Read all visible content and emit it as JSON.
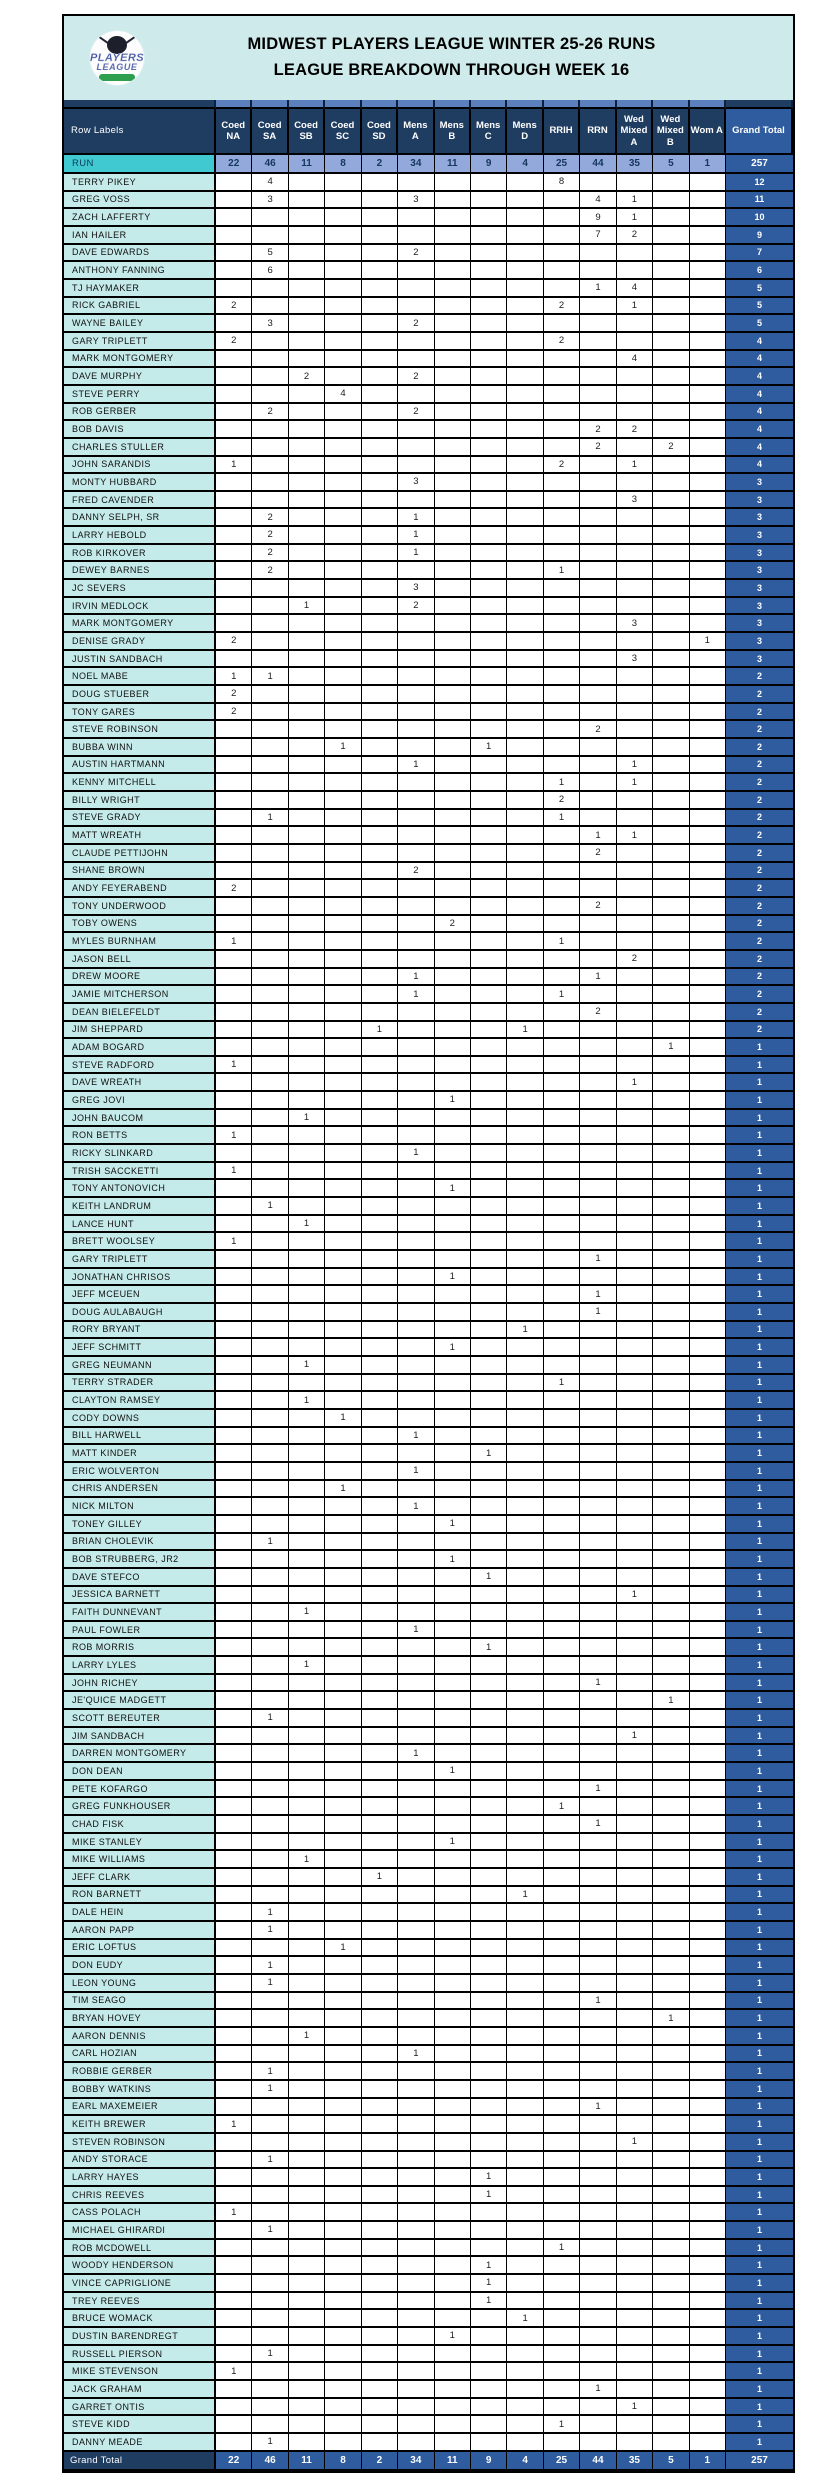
{
  "title": {
    "line1": "MIDWEST PLAYERS LEAGUE WINTER 25-26 RUNS",
    "line2": "LEAGUE BREAKDOWN THROUGH WEEK 16"
  },
  "logo": {
    "text_main": "PLAYERS",
    "text_sub": "LEAGUE"
  },
  "colors": {
    "title_band": "#cfeaea",
    "header_navy": "#1f3c61",
    "grand_total_blue": "#2e5c9e",
    "subtotal_periwinkle": "#93a9db",
    "run_label_turquoise": "#41c9d2",
    "player_label_cyan": "#c5eaea"
  },
  "table": {
    "row_labels_header": "Row Labels",
    "grand_total_header": "Grand Total",
    "columns": [
      "Coed NA",
      "Coed SA",
      "Coed SB",
      "Coed SC",
      "Coed SD",
      "Mens A",
      "Mens B",
      "Mens C",
      "Mens D",
      "RRIH",
      "RRN",
      "Wed Mixed A",
      "Wed Mixed B",
      "Wom A"
    ],
    "run_row": {
      "label": "RUN",
      "values": [
        22,
        46,
        11,
        8,
        2,
        34,
        11,
        9,
        4,
        25,
        44,
        35,
        5,
        1
      ],
      "total": 257
    },
    "rows": [
      {
        "name": "TERRY PIKEY",
        "cells": {
          "1": 4,
          "9": 8
        },
        "total": 12
      },
      {
        "name": "GREG VOSS",
        "cells": {
          "1": 3,
          "5": 3,
          "10": 4,
          "11": 1
        },
        "total": 11
      },
      {
        "name": "ZACH LAFFERTY",
        "cells": {
          "10": 9,
          "11": 1
        },
        "total": 10
      },
      {
        "name": "IAN HAILER",
        "cells": {
          "10": 7,
          "11": 2
        },
        "total": 9
      },
      {
        "name": "DAVE EDWARDS",
        "cells": {
          "1": 5,
          "5": 2
        },
        "total": 7
      },
      {
        "name": "ANTHONY FANNING",
        "cells": {
          "1": 6
        },
        "total": 6
      },
      {
        "name": "TJ HAYMAKER",
        "cells": {
          "10": 1,
          "11": 4
        },
        "total": 5
      },
      {
        "name": "RICK GABRIEL",
        "cells": {
          "0": 2,
          "9": 2,
          "11": 1
        },
        "total": 5
      },
      {
        "name": "WAYNE BAILEY",
        "cells": {
          "1": 3,
          "5": 2
        },
        "total": 5
      },
      {
        "name": "GARY TRIPLETT",
        "cells": {
          "0": 2,
          "9": 2
        },
        "total": 4
      },
      {
        "name": "MARK MONTGOMERY",
        "cells": {
          "11": 4
        },
        "total": 4
      },
      {
        "name": "DAVE MURPHY",
        "cells": {
          "2": 2,
          "5": 2
        },
        "total": 4
      },
      {
        "name": "STEVE PERRY",
        "cells": {
          "3": 4
        },
        "total": 4
      },
      {
        "name": "ROB GERBER",
        "cells": {
          "1": 2,
          "5": 2
        },
        "total": 4
      },
      {
        "name": "BOB DAVIS",
        "cells": {
          "10": 2,
          "11": 2
        },
        "total": 4
      },
      {
        "name": "CHARLES STULLER",
        "cells": {
          "10": 2,
          "12": 2
        },
        "total": 4
      },
      {
        "name": "JOHN SARANDIS",
        "cells": {
          "0": 1,
          "9": 2,
          "11": 1
        },
        "total": 4
      },
      {
        "name": "MONTY HUBBARD",
        "cells": {
          "5": 3
        },
        "total": 3
      },
      {
        "name": "FRED CAVENDER",
        "cells": {
          "11": 3
        },
        "total": 3
      },
      {
        "name": "DANNY SELPH, SR",
        "cells": {
          "1": 2,
          "5": 1
        },
        "total": 3
      },
      {
        "name": "LARRY HEBOLD",
        "cells": {
          "1": 2,
          "5": 1
        },
        "total": 3
      },
      {
        "name": "ROB KIRKOVER",
        "cells": {
          "1": 2,
          "5": 1
        },
        "total": 3
      },
      {
        "name": "DEWEY BARNES",
        "cells": {
          "1": 2,
          "9": 1
        },
        "total": 3
      },
      {
        "name": "JC SEVERS",
        "cells": {
          "5": 3
        },
        "total": 3
      },
      {
        "name": "IRVIN MEDLOCK",
        "cells": {
          "2": 1,
          "5": 2
        },
        "total": 3
      },
      {
        "name": "MARK MONTGOMERY",
        "cells": {
          "11": 3
        },
        "total": 3
      },
      {
        "name": "DENISE GRADY",
        "cells": {
          "0": 2,
          "13": 1
        },
        "total": 3
      },
      {
        "name": "JUSTIN SANDBACH",
        "cells": {
          "11": 3
        },
        "total": 3
      },
      {
        "name": "NOEL MABE",
        "cells": {
          "0": 1,
          "1": 1
        },
        "total": 2
      },
      {
        "name": "DOUG STUEBER",
        "cells": {
          "0": 2
        },
        "total": 2
      },
      {
        "name": "TONY GARES",
        "cells": {
          "0": 2
        },
        "total": 2
      },
      {
        "name": "STEVE ROBINSON",
        "cells": {
          "10": 2
        },
        "total": 2
      },
      {
        "name": "BUBBA WINN",
        "cells": {
          "3": 1,
          "7": 1
        },
        "total": 2
      },
      {
        "name": "AUSTIN HARTMANN",
        "cells": {
          "5": 1,
          "11": 1
        },
        "total": 2
      },
      {
        "name": "KENNY MITCHELL",
        "cells": {
          "9": 1,
          "11": 1
        },
        "total": 2
      },
      {
        "name": "BILLY WRIGHT",
        "cells": {
          "9": 2
        },
        "total": 2
      },
      {
        "name": "STEVE GRADY",
        "cells": {
          "1": 1,
          "9": 1
        },
        "total": 2
      },
      {
        "name": "MATT WREATH",
        "cells": {
          "10": 1,
          "11": 1
        },
        "total": 2
      },
      {
        "name": "CLAUDE PETTIJOHN",
        "cells": {
          "10": 2
        },
        "total": 2
      },
      {
        "name": "SHANE BROWN",
        "cells": {
          "5": 2
        },
        "total": 2
      },
      {
        "name": "ANDY FEYERABEND",
        "cells": {
          "0": 2
        },
        "total": 2
      },
      {
        "name": "TONY UNDERWOOD",
        "cells": {
          "10": 2
        },
        "total": 2
      },
      {
        "name": "TOBY OWENS",
        "cells": {
          "6": 2
        },
        "total": 2
      },
      {
        "name": "MYLES BURNHAM",
        "cells": {
          "0": 1,
          "9": 1
        },
        "total": 2
      },
      {
        "name": "JASON BELL",
        "cells": {
          "11": 2
        },
        "total": 2
      },
      {
        "name": "DREW MOORE",
        "cells": {
          "5": 1,
          "10": 1
        },
        "total": 2
      },
      {
        "name": "JAMIE MITCHERSON",
        "cells": {
          "5": 1,
          "9": 1
        },
        "total": 2
      },
      {
        "name": "DEAN BIELEFELDT",
        "cells": {
          "10": 2
        },
        "total": 2
      },
      {
        "name": "JIM SHEPPARD",
        "cells": {
          "4": 1,
          "8": 1
        },
        "total": 2
      },
      {
        "name": "ADAM BOGARD",
        "cells": {
          "12": 1
        },
        "total": 1
      },
      {
        "name": "STEVE RADFORD",
        "cells": {
          "0": 1
        },
        "total": 1
      },
      {
        "name": "DAVE WREATH",
        "cells": {
          "11": 1
        },
        "total": 1
      },
      {
        "name": "GREG JOVI",
        "cells": {
          "6": 1
        },
        "total": 1
      },
      {
        "name": "JOHN BAUCOM",
        "cells": {
          "2": 1
        },
        "total": 1
      },
      {
        "name": "RON BETTS",
        "cells": {
          "0": 1
        },
        "total": 1
      },
      {
        "name": "RICKY SLINKARD",
        "cells": {
          "5": 1
        },
        "total": 1
      },
      {
        "name": "TRISH SACCKETTI",
        "cells": {
          "0": 1
        },
        "total": 1
      },
      {
        "name": "TONY ANTONOVICH",
        "cells": {
          "6": 1
        },
        "total": 1
      },
      {
        "name": "KEITH LANDRUM",
        "cells": {
          "1": 1
        },
        "total": 1
      },
      {
        "name": "LANCE HUNT",
        "cells": {
          "2": 1
        },
        "total": 1
      },
      {
        "name": "BRETT WOOLSEY",
        "cells": {
          "0": 1
        },
        "total": 1
      },
      {
        "name": "GARY TRIPLETT",
        "cells": {
          "10": 1
        },
        "total": 1
      },
      {
        "name": "JONATHAN CHRISOS",
        "cells": {
          "6": 1
        },
        "total": 1
      },
      {
        "name": "JEFF MCEUEN",
        "cells": {
          "10": 1
        },
        "total": 1
      },
      {
        "name": "DOUG AULABAUGH",
        "cells": {
          "10": 1
        },
        "total": 1
      },
      {
        "name": "RORY BRYANT",
        "cells": {
          "8": 1
        },
        "total": 1
      },
      {
        "name": "JEFF SCHMITT",
        "cells": {
          "6": 1
        },
        "total": 1
      },
      {
        "name": "GREG NEUMANN",
        "cells": {
          "2": 1
        },
        "total": 1
      },
      {
        "name": "TERRY STRADER",
        "cells": {
          "9": 1
        },
        "total": 1
      },
      {
        "name": "CLAYTON RAMSEY",
        "cells": {
          "2": 1
        },
        "total": 1
      },
      {
        "name": "CODY DOWNS",
        "cells": {
          "3": 1
        },
        "total": 1
      },
      {
        "name": "BILL HARWELL",
        "cells": {
          "5": 1
        },
        "total": 1
      },
      {
        "name": "MATT KINDER",
        "cells": {
          "7": 1
        },
        "total": 1
      },
      {
        "name": "ERIC WOLVERTON",
        "cells": {
          "5": 1
        },
        "total": 1
      },
      {
        "name": "CHRIS ANDERSEN",
        "cells": {
          "3": 1
        },
        "total": 1
      },
      {
        "name": "NICK MILTON",
        "cells": {
          "5": 1
        },
        "total": 1
      },
      {
        "name": "TONEY GILLEY",
        "cells": {
          "6": 1
        },
        "total": 1
      },
      {
        "name": "BRIAN CHOLEVIK",
        "cells": {
          "1": 1
        },
        "total": 1
      },
      {
        "name": "BOB STRUBBERG, JR2",
        "cells": {
          "6": 1
        },
        "total": 1
      },
      {
        "name": "DAVE STEFCO",
        "cells": {
          "7": 1
        },
        "total": 1
      },
      {
        "name": "JESSICA BARNETT",
        "cells": {
          "11": 1
        },
        "total": 1
      },
      {
        "name": "FAITH DUNNEVANT",
        "cells": {
          "2": 1
        },
        "total": 1
      },
      {
        "name": "PAUL FOWLER",
        "cells": {
          "5": 1
        },
        "total": 1
      },
      {
        "name": "ROB MORRIS",
        "cells": {
          "7": 1
        },
        "total": 1
      },
      {
        "name": "LARRY LYLES",
        "cells": {
          "2": 1
        },
        "total": 1
      },
      {
        "name": "JOHN RICHEY",
        "cells": {
          "10": 1
        },
        "total": 1
      },
      {
        "name": "JE'QUICE MADGETT",
        "cells": {
          "12": 1
        },
        "total": 1
      },
      {
        "name": "SCOTT BEREUTER",
        "cells": {
          "1": 1
        },
        "total": 1
      },
      {
        "name": "JIM SANDBACH",
        "cells": {
          "11": 1
        },
        "total": 1
      },
      {
        "name": "DARREN MONTGOMERY",
        "cells": {
          "5": 1
        },
        "total": 1
      },
      {
        "name": "DON DEAN",
        "cells": {
          "6": 1
        },
        "total": 1
      },
      {
        "name": "PETE KOFARGO",
        "cells": {
          "10": 1
        },
        "total": 1
      },
      {
        "name": "GREG FUNKHOUSER",
        "cells": {
          "9": 1
        },
        "total": 1
      },
      {
        "name": "CHAD FISK",
        "cells": {
          "10": 1
        },
        "total": 1
      },
      {
        "name": "MIKE STANLEY",
        "cells": {
          "6": 1
        },
        "total": 1
      },
      {
        "name": "MIKE WILLIAMS",
        "cells": {
          "2": 1
        },
        "total": 1
      },
      {
        "name": "JEFF CLARK",
        "cells": {
          "4": 1
        },
        "total": 1
      },
      {
        "name": "RON BARNETT",
        "cells": {
          "8": 1
        },
        "total": 1
      },
      {
        "name": "DALE HEIN",
        "cells": {
          "1": 1
        },
        "total": 1
      },
      {
        "name": "AARON PAPP",
        "cells": {
          "1": 1
        },
        "total": 1
      },
      {
        "name": "ERIC LOFTUS",
        "cells": {
          "3": 1
        },
        "total": 1
      },
      {
        "name": "DON EUDY",
        "cells": {
          "1": 1
        },
        "total": 1
      },
      {
        "name": "LEON YOUNG",
        "cells": {
          "1": 1
        },
        "total": 1
      },
      {
        "name": "TIM SEAGO",
        "cells": {
          "10": 1
        },
        "total": 1
      },
      {
        "name": "BRYAN HOVEY",
        "cells": {
          "12": 1
        },
        "total": 1
      },
      {
        "name": "AARON DENNIS",
        "cells": {
          "2": 1
        },
        "total": 1
      },
      {
        "name": "CARL HOZIAN",
        "cells": {
          "5": 1
        },
        "total": 1
      },
      {
        "name": "ROBBIE GERBER",
        "cells": {
          "1": 1
        },
        "total": 1
      },
      {
        "name": "BOBBY WATKINS",
        "cells": {
          "1": 1
        },
        "total": 1
      },
      {
        "name": "EARL MAXEMEIER",
        "cells": {
          "10": 1
        },
        "total": 1
      },
      {
        "name": "KEITH BREWER",
        "cells": {
          "0": 1
        },
        "total": 1
      },
      {
        "name": "STEVEN ROBINSON",
        "cells": {
          "11": 1
        },
        "total": 1
      },
      {
        "name": "ANDY STORACE",
        "cells": {
          "1": 1
        },
        "total": 1
      },
      {
        "name": "LARRY HAYES",
        "cells": {
          "7": 1
        },
        "total": 1
      },
      {
        "name": "CHRIS REEVES",
        "cells": {
          "7": 1
        },
        "total": 1
      },
      {
        "name": "CASS POLACH",
        "cells": {
          "0": 1
        },
        "total": 1
      },
      {
        "name": "MICHAEL GHIRARDI",
        "cells": {
          "1": 1
        },
        "total": 1
      },
      {
        "name": "ROB MCDOWELL",
        "cells": {
          "9": 1
        },
        "total": 1
      },
      {
        "name": "WOODY HENDERSON",
        "cells": {
          "7": 1
        },
        "total": 1
      },
      {
        "name": "VINCE CAPRIGLIONE",
        "cells": {
          "7": 1
        },
        "total": 1
      },
      {
        "name": "TREY REEVES",
        "cells": {
          "7": 1
        },
        "total": 1
      },
      {
        "name": "BRUCE WOMACK",
        "cells": {
          "8": 1
        },
        "total": 1
      },
      {
        "name": "DUSTIN BARENDREGT",
        "cells": {
          "6": 1
        },
        "total": 1
      },
      {
        "name": "RUSSELL PIERSON",
        "cells": {
          "1": 1
        },
        "total": 1
      },
      {
        "name": "MIKE STEVENSON",
        "cells": {
          "0": 1
        },
        "total": 1
      },
      {
        "name": "JACK GRAHAM",
        "cells": {
          "10": 1
        },
        "total": 1
      },
      {
        "name": "GARRET ONTIS",
        "cells": {
          "11": 1
        },
        "total": 1
      },
      {
        "name": "STEVE KIDD",
        "cells": {
          "9": 1
        },
        "total": 1
      },
      {
        "name": "DANNY MEADE",
        "cells": {
          "1": 1
        },
        "total": 1
      }
    ],
    "grand_total_row": {
      "label": "Grand Total",
      "values": [
        22,
        46,
        11,
        8,
        2,
        34,
        11,
        9,
        4,
        25,
        44,
        35,
        5,
        1
      ],
      "total": 257
    }
  }
}
